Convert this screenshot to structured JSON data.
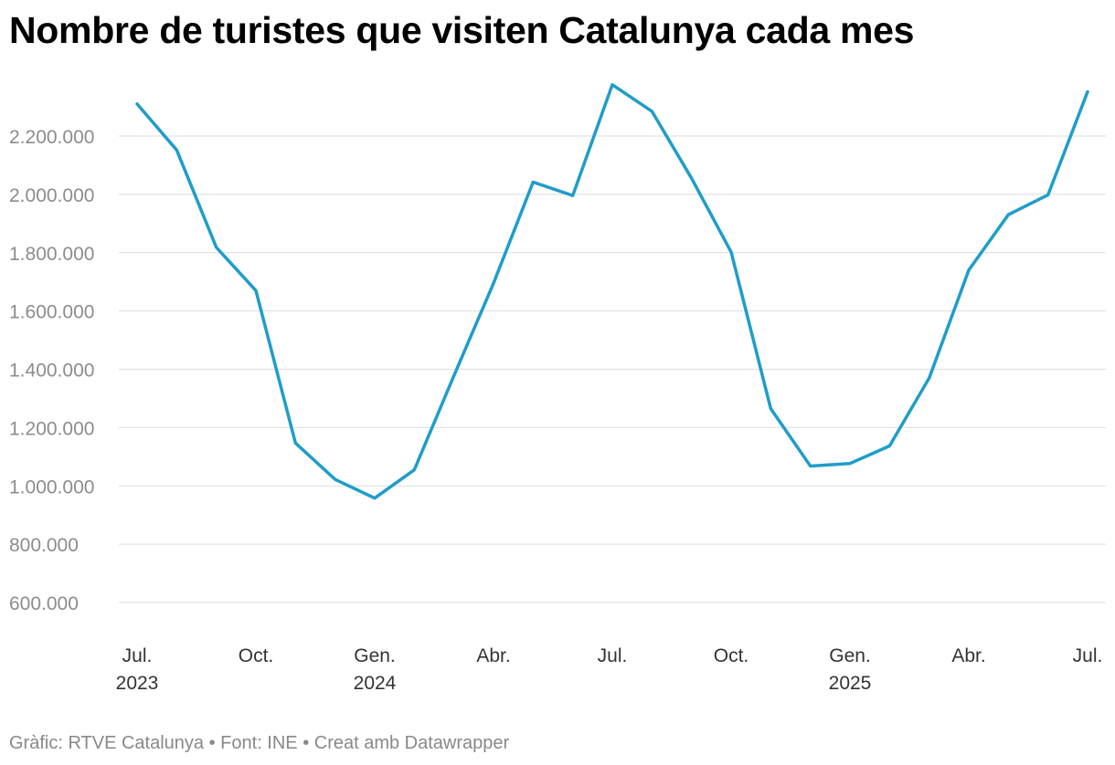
{
  "chart_data": {
    "type": "line",
    "title": "Nombre de turistes que visiten Catalunya cada mes",
    "xlabel": "",
    "ylabel": "",
    "ylim": [
      500000,
      2400000
    ],
    "yticks": [
      600000,
      800000,
      1000000,
      1200000,
      1400000,
      1600000,
      1800000,
      2000000,
      2200000
    ],
    "ytick_labels": [
      "600.000",
      "800.000",
      "1.000.000",
      "1.200.000",
      "1.400.000",
      "1.600.000",
      "1.800.000",
      "2.000.000",
      "2.200.000"
    ],
    "x": [
      "2023-07",
      "2023-08",
      "2023-09",
      "2023-10",
      "2023-11",
      "2023-12",
      "2024-01",
      "2024-02",
      "2024-03",
      "2024-04",
      "2024-05",
      "2024-06",
      "2024-07",
      "2024-08",
      "2024-09",
      "2024-10",
      "2024-11",
      "2024-12",
      "2025-01",
      "2025-02",
      "2025-03",
      "2025-04",
      "2025-05",
      "2025-06",
      "2025-07"
    ],
    "xticks": [
      {
        "index": 0,
        "month": "Jul.",
        "year": "2023"
      },
      {
        "index": 3,
        "month": "Oct.",
        "year": ""
      },
      {
        "index": 6,
        "month": "Gen.",
        "year": "2024"
      },
      {
        "index": 9,
        "month": "Abr.",
        "year": ""
      },
      {
        "index": 12,
        "month": "Jul.",
        "year": ""
      },
      {
        "index": 15,
        "month": "Oct.",
        "year": ""
      },
      {
        "index": 18,
        "month": "Gen.",
        "year": "2025"
      },
      {
        "index": 21,
        "month": "Abr.",
        "year": ""
      },
      {
        "index": 24,
        "month": "Jul.",
        "year": ""
      }
    ],
    "series": [
      {
        "name": "Turistes",
        "color": "#1f9dc9",
        "values": [
          2310000,
          2152000,
          1818000,
          1670000,
          1147000,
          1022000,
          958000,
          1055000,
          1378000,
          1695000,
          2042000,
          1996000,
          2376000,
          2285000,
          2055000,
          1802000,
          1265000,
          1068000,
          1077000,
          1137000,
          1370000,
          1740000,
          1930000,
          1998000,
          2352000
        ]
      }
    ],
    "grid": true
  },
  "footer": {
    "text": "Gràfic: RTVE Catalunya  • Font: INE • Creat amb Datawrapper"
  }
}
